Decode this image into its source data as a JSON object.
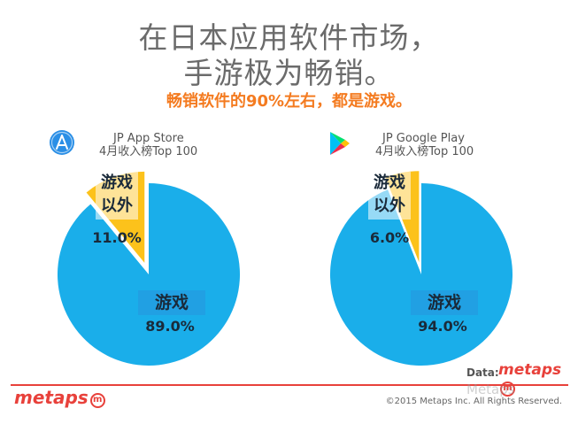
{
  "title_line1": "在日本应用软件市场，",
  "title_line2": "手游极为畅销。",
  "subtitle": "畅销软件的90%左右，都是游戏。",
  "colors": {
    "games": "#1aaeea",
    "non_games": "#fcc21b",
    "accent": "#f47b20",
    "brand": "#e8413b"
  },
  "chart_data": [
    {
      "type": "pie",
      "title": "JP App Store",
      "subtitle": "4月收入榜Top 100",
      "icon": "app-store-icon",
      "slices": [
        {
          "label": "游戏",
          "value": 89.0,
          "display": "89.0%"
        },
        {
          "label": "游戏\n以外",
          "value": 11.0,
          "display": "11.0%"
        }
      ]
    },
    {
      "type": "pie",
      "title": "JP Google Play",
      "subtitle": "4月收入榜Top 100",
      "icon": "google-play-icon",
      "slices": [
        {
          "label": "游戏",
          "value": 94.0,
          "display": "94.0%"
        },
        {
          "label": "游戏\n以外",
          "value": 6.0,
          "display": "6.0%"
        }
      ]
    }
  ],
  "footer": {
    "data_label": "Data:",
    "brand": "metaps",
    "brand_mark": "m",
    "copyright": "©2015 Metaps Inc. All Rights Reserved.",
    "watermark": "Metaps"
  }
}
